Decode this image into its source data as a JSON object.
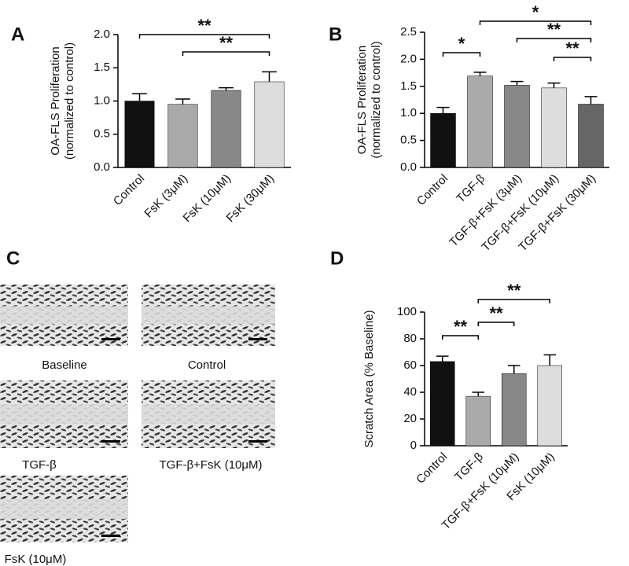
{
  "chart_data": [
    {
      "type": "bar",
      "panel_label": "A",
      "ylabel": [
        "OA-FLS Proliferation",
        "(normalized to control)"
      ],
      "categories": [
        "Control",
        "FsK (3μM)",
        "FsK (10μM)",
        "FsK (30μM)"
      ],
      "values": [
        1.0,
        0.95,
        1.16,
        1.29
      ],
      "errors": [
        0.11,
        0.08,
        0.04,
        0.15
      ],
      "colors": [
        "#111111",
        "#aaaaaa",
        "#888888",
        "#dddddd"
      ],
      "ylim": [
        0,
        2
      ],
      "yticks": [
        {
          "value": 0,
          "label": "0.0"
        },
        0.5,
        {
          "value": 1,
          "label": "1.0"
        },
        1.5,
        {
          "value": 2,
          "label": "2.0"
        }
      ],
      "significance": [
        "**",
        "**"
      ]
    },
    {
      "type": "bar",
      "panel_label": "B",
      "ylabel": [
        "OA-FLS Proliferation",
        "(normalized to control)"
      ],
      "categories": [
        "Control",
        "TGF-β",
        "TGF-β+FsK (3μM)",
        "TGF-β+FsK (10μM)",
        "TGF-β+FsK (30μM)"
      ],
      "values": [
        1.0,
        1.69,
        1.52,
        1.47,
        1.17
      ],
      "errors": [
        0.11,
        0.07,
        0.07,
        0.09,
        0.14
      ],
      "colors": [
        "#111111",
        "#aaaaaa",
        "#888888",
        "#dddddd",
        "#666666"
      ],
      "ylim": [
        0,
        2.5
      ],
      "yticks": [
        {
          "value": 0,
          "label": "0.0"
        },
        0.5,
        {
          "value": 1,
          "label": "1.0"
        },
        1.5,
        {
          "value": 2,
          "label": "2.0"
        },
        2.5
      ],
      "significance": [
        "*",
        "*",
        "**",
        "**"
      ]
    },
    {
      "type": "bar",
      "panel_label": "D",
      "ylabel": [
        "Scratch Area (% Baseline)"
      ],
      "categories": [
        "Control",
        "TGF-β",
        "TGF-β+FsK (10μM)",
        "FsK (10μM)"
      ],
      "values": [
        63,
        37,
        54,
        60
      ],
      "errors": [
        4,
        3,
        6,
        8
      ],
      "colors": [
        "#111111",
        "#aaaaaa",
        "#888888",
        "#dddddd"
      ],
      "ylim": [
        0,
        100
      ],
      "yticks": [
        0,
        20,
        40,
        60,
        80,
        100
      ],
      "significance": [
        "**",
        "**",
        "**"
      ]
    }
  ],
  "panel_c": {
    "label": "C",
    "images": [
      "Baseline",
      "Control",
      "TGF-β",
      "TGF-β+FsK (10μM)",
      "FsK (10μM)"
    ]
  }
}
